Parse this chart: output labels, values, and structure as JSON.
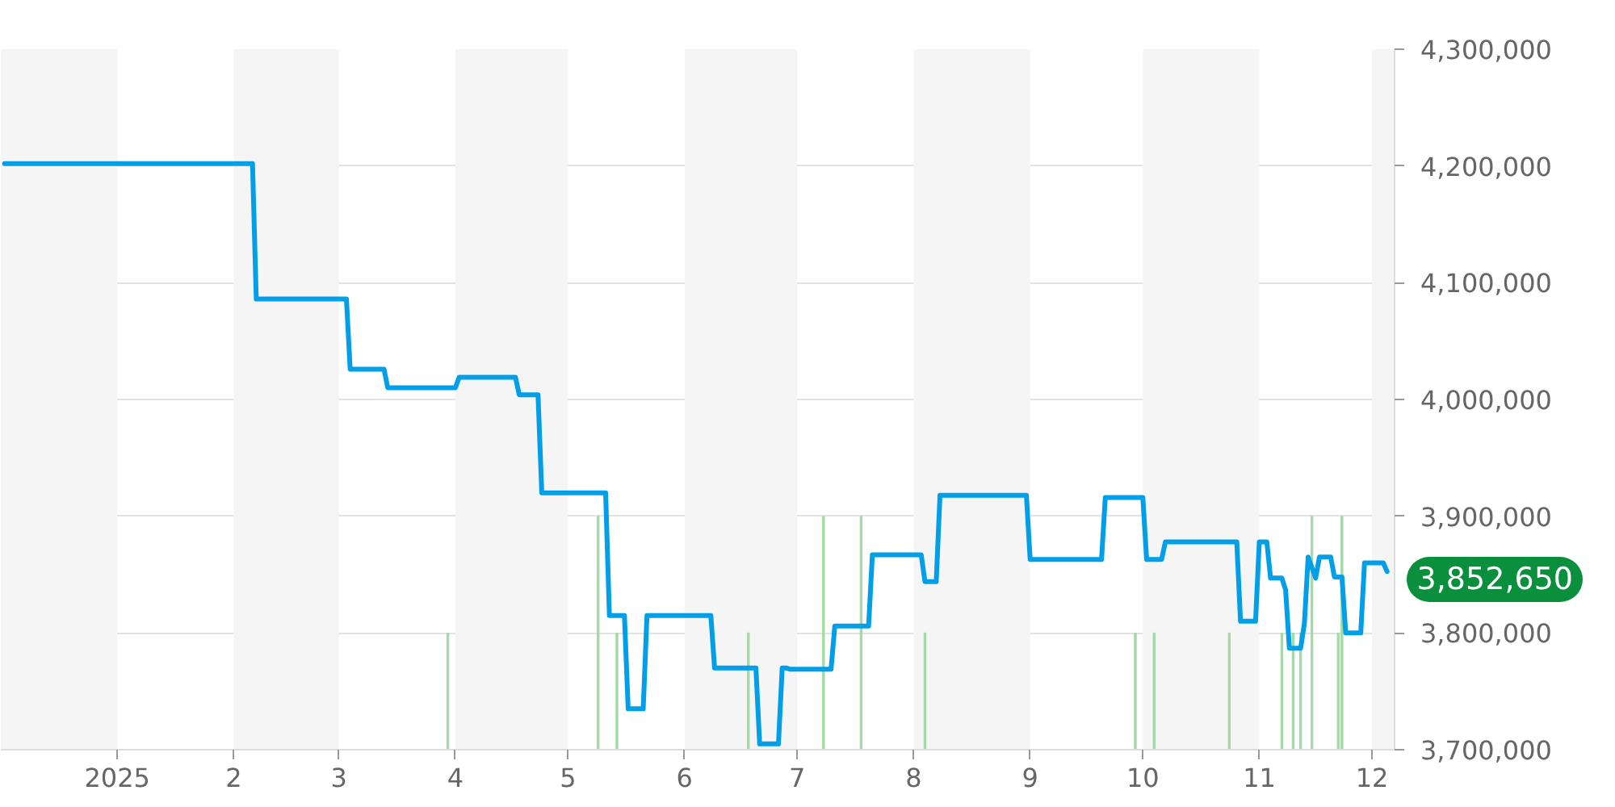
{
  "chart_data": {
    "type": "line",
    "xlim": [
      "2024-12-01",
      "2025-12-07"
    ],
    "xticks": [
      {
        "value": "2025-01-01",
        "label": "2025"
      },
      {
        "value": "2025-02-01",
        "label": "2"
      },
      {
        "value": "2025-03-01",
        "label": "3"
      },
      {
        "value": "2025-04-01",
        "label": "4"
      },
      {
        "value": "2025-05-01",
        "label": "5"
      },
      {
        "value": "2025-06-01",
        "label": "6"
      },
      {
        "value": "2025-07-01",
        "label": "7"
      },
      {
        "value": "2025-08-01",
        "label": "8"
      },
      {
        "value": "2025-09-01",
        "label": "9"
      },
      {
        "value": "2025-10-01",
        "label": "10"
      },
      {
        "value": "2025-11-01",
        "label": "11"
      },
      {
        "value": "2025-12-01",
        "label": "12"
      }
    ],
    "ylim": [
      3700000,
      4300000
    ],
    "yticks": [
      {
        "value": 3700000,
        "label": "3,700,000"
      },
      {
        "value": 3800000,
        "label": "3,800,000"
      },
      {
        "value": 3900000,
        "label": "3,900,000"
      },
      {
        "value": 4000000,
        "label": "4,000,000"
      },
      {
        "value": 4100000,
        "label": "4,100,000"
      },
      {
        "value": 4200000,
        "label": "4,200,000"
      },
      {
        "value": 4300000,
        "label": "4,300,000"
      }
    ],
    "grid": "y",
    "bands": [
      {
        "axis": "x",
        "from": "2024-12-01",
        "to": "2025-01-01",
        "color": "#f5f5f5"
      },
      {
        "axis": "x",
        "from": "2025-02-01",
        "to": "2025-03-01",
        "color": "#f5f5f5"
      },
      {
        "axis": "x",
        "from": "2025-04-01",
        "to": "2025-05-01",
        "color": "#f5f5f5"
      },
      {
        "axis": "x",
        "from": "2025-06-01",
        "to": "2025-07-01",
        "color": "#f5f5f5"
      },
      {
        "axis": "x",
        "from": "2025-08-01",
        "to": "2025-09-01",
        "color": "#f5f5f5"
      },
      {
        "axis": "x",
        "from": "2025-10-01",
        "to": "2025-11-01",
        "color": "#f5f5f5"
      },
      {
        "axis": "x",
        "from": "2025-12-01",
        "to": "2025-12-07",
        "color": "#f5f5f5"
      }
    ],
    "series": [
      {
        "type": "bar",
        "color": "#a3d9a5",
        "x": [
          "2025-03-30",
          "2025-05-09",
          "2025-05-14",
          "2025-06-18",
          "2025-07-08",
          "2025-07-18",
          "2025-08-04",
          "2025-09-29",
          "2025-10-04",
          "2025-10-24",
          "2025-11-07",
          "2025-11-10",
          "2025-11-12",
          "2025-11-15",
          "2025-11-22",
          "2025-11-23"
        ],
        "values": [
          3800000,
          3900000,
          3800000,
          3800000,
          3900000,
          3900000,
          3800000,
          3800000,
          3800000,
          3800000,
          3800000,
          3800000,
          3800000,
          3900000,
          3800000,
          3900000
        ]
      },
      {
        "color": "#009fe8",
        "x": [
          "2024-12-02",
          "2025-02-06",
          "2025-02-07",
          "2025-03-03",
          "2025-03-04",
          "2025-03-13",
          "2025-03-14",
          "2025-04-01",
          "2025-04-02",
          "2025-04-17",
          "2025-04-18",
          "2025-04-23",
          "2025-04-24",
          "2025-05-11",
          "2025-05-12",
          "2025-05-16",
          "2025-05-17",
          "2025-05-21",
          "2025-05-22",
          "2025-06-08",
          "2025-06-09",
          "2025-06-20",
          "2025-06-21",
          "2025-06-26",
          "2025-06-27",
          "2025-06-28",
          "2025-06-29",
          "2025-07-10",
          "2025-07-11",
          "2025-07-20",
          "2025-07-21",
          "2025-08-03",
          "2025-08-04",
          "2025-08-07",
          "2025-08-08",
          "2025-08-31",
          "2025-09-01",
          "2025-09-20",
          "2025-09-21",
          "2025-10-01",
          "2025-10-02",
          "2025-10-06",
          "2025-10-07",
          "2025-10-26",
          "2025-10-27",
          "2025-10-31",
          "2025-11-01",
          "2025-11-03",
          "2025-11-04",
          "2025-11-07",
          "2025-11-08",
          "2025-11-09",
          "2025-11-12",
          "2025-11-13",
          "2025-11-14",
          "2025-11-16",
          "2025-11-17",
          "2025-11-20",
          "2025-11-21",
          "2025-11-23",
          "2025-11-24",
          "2025-11-28",
          "2025-11-29",
          "2025-12-04",
          "2025-12-05"
        ],
        "values": [
          4202000,
          4202000,
          4086000,
          4086000,
          4026000,
          4026000,
          4010000,
          4010000,
          4019000,
          4019000,
          4004000,
          4004000,
          3920000,
          3920000,
          3815000,
          3815000,
          3735000,
          3735000,
          3815000,
          3815000,
          3770000,
          3770000,
          3705000,
          3705000,
          3770000,
          3770000,
          3769000,
          3769000,
          3806000,
          3806000,
          3867000,
          3867000,
          3844000,
          3844000,
          3918000,
          3918000,
          3863000,
          3863000,
          3916000,
          3916000,
          3863000,
          3863000,
          3878000,
          3878000,
          3810000,
          3810000,
          3878000,
          3878000,
          3847000,
          3847000,
          3837000,
          3787000,
          3787000,
          3808000,
          3865000,
          3847000,
          3865000,
          3865000,
          3848000,
          3848000,
          3800000,
          3800000,
          3860000,
          3860000,
          3852650
        ]
      }
    ],
    "annotations": [
      {
        "text": "3,852,650",
        "x": "2025-12-05",
        "y": 3852650
      }
    ]
  }
}
